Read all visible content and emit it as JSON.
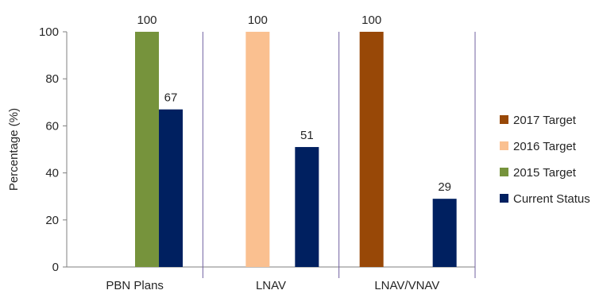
{
  "chart_data": {
    "type": "bar",
    "categories": [
      "PBN Plans",
      "LNAV",
      "LNAV/VNAV"
    ],
    "series": [
      {
        "name": "2015 Target",
        "color": "#76933c",
        "values": [
          100,
          null,
          null
        ]
      },
      {
        "name": "2016 Target",
        "color": "#fac090",
        "values": [
          null,
          100,
          null
        ]
      },
      {
        "name": "2017 Target",
        "color": "#984807",
        "values": [
          null,
          null,
          100
        ]
      },
      {
        "name": "Current Status",
        "color": "#002060",
        "values": [
          67,
          51,
          29
        ]
      }
    ],
    "legend_order": [
      "2017 Target",
      "2016 Target",
      "2015 Target",
      "Current Status"
    ],
    "xlabel": "",
    "ylabel": "Percentage (%)",
    "ylim": [
      0,
      100
    ],
    "yticks": [
      0,
      20,
      40,
      60,
      80,
      100
    ],
    "grid": false,
    "data_labels": true,
    "legend_position": "right"
  }
}
